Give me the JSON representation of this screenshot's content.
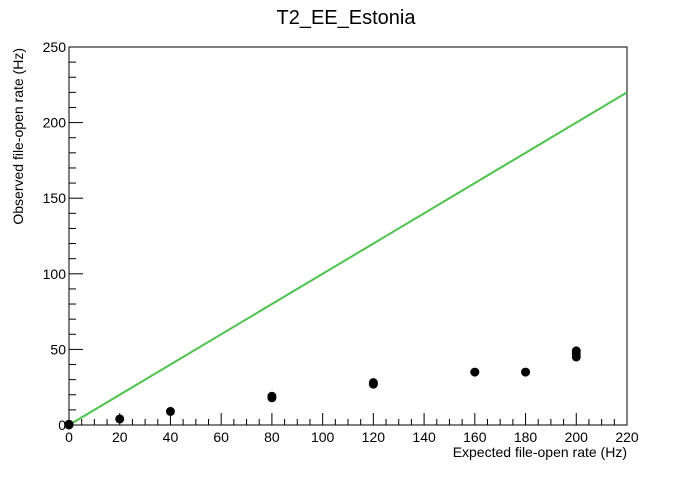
{
  "chart_data": {
    "type": "scatter",
    "title": "T2_EE_Estonia",
    "xlabel": "Expected file-open rate (Hz)",
    "ylabel": "Observed file-open rate (Hz)",
    "xlim": [
      0,
      220
    ],
    "ylim": [
      0,
      250
    ],
    "x_ticks": [
      0,
      20,
      40,
      60,
      80,
      100,
      120,
      140,
      160,
      180,
      200,
      220
    ],
    "y_ticks": [
      0,
      50,
      100,
      150,
      200,
      250
    ],
    "grid": false,
    "series": [
      {
        "type": "scatter",
        "color": "#000000",
        "x": [
          0,
          0,
          20,
          40,
          80,
          80,
          120,
          120,
          160,
          180,
          200,
          200,
          200
        ],
        "y": [
          0,
          0.5,
          4,
          9,
          18,
          19,
          27,
          28,
          35,
          35,
          45,
          47,
          49
        ]
      },
      {
        "type": "line",
        "color": "#4cc34c",
        "x": [
          0,
          220
        ],
        "y": [
          0,
          220
        ]
      }
    ]
  }
}
